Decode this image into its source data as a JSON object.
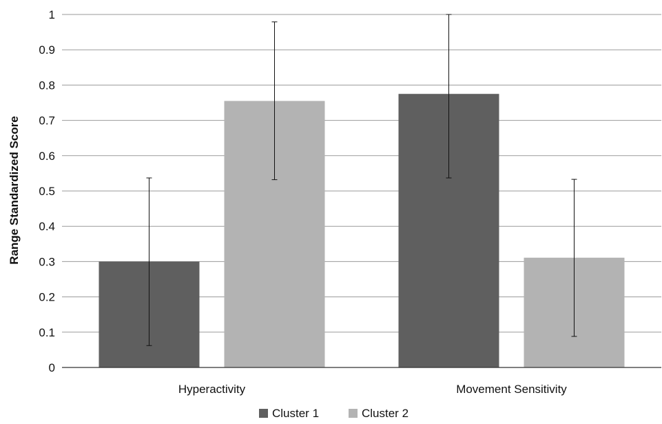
{
  "chart_data": {
    "type": "bar",
    "categories": [
      "Hyperactivity",
      "Movement Sensitivity"
    ],
    "series": [
      {
        "name": "Cluster 1",
        "color": "#5f5f5f",
        "values": [
          0.3,
          0.775
        ],
        "error_low": [
          0.062,
          0.537
        ],
        "error_high": [
          0.537,
          1.0
        ]
      },
      {
        "name": "Cluster 2",
        "color": "#b3b3b3",
        "values": [
          0.755,
          0.311
        ],
        "error_low": [
          0.532,
          0.088
        ],
        "error_high": [
          0.979,
          0.533
        ]
      }
    ],
    "ylabel": "Range Standardized Score",
    "ylim": [
      0,
      1
    ],
    "yticks": [
      "0",
      "0.1",
      "0.2",
      "0.3",
      "0.4",
      "0.5",
      "0.6",
      "0.7",
      "0.8",
      "0.9",
      "1"
    ],
    "ytick_values": [
      0,
      0.1,
      0.2,
      0.3,
      0.4,
      0.5,
      0.6,
      0.7,
      0.8,
      0.9,
      1
    ],
    "grid": true,
    "legend_position": "bottom-center"
  }
}
